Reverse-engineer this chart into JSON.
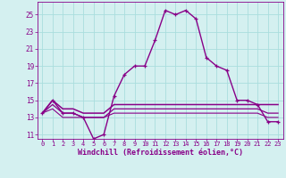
{
  "xlabel": "Windchill (Refroidissement éolien,°C)",
  "bg_color": "#d4f0f0",
  "line_color": "#880088",
  "grid_color": "#aadddd",
  "ylim": [
    10.5,
    26.5
  ],
  "xlim": [
    -0.5,
    23.5
  ],
  "yticks": [
    11,
    13,
    15,
    17,
    19,
    21,
    23,
    25
  ],
  "xticks": [
    0,
    1,
    2,
    3,
    4,
    5,
    6,
    7,
    8,
    9,
    10,
    11,
    12,
    13,
    14,
    15,
    16,
    17,
    18,
    19,
    20,
    21,
    22,
    23
  ],
  "hours": [
    0,
    1,
    2,
    3,
    4,
    5,
    6,
    7,
    8,
    9,
    10,
    11,
    12,
    13,
    14,
    15,
    16,
    17,
    18,
    19,
    20,
    21,
    22,
    23
  ],
  "windchill": [
    13.5,
    15.0,
    13.5,
    13.5,
    13.0,
    10.5,
    11.0,
    15.5,
    18.0,
    19.0,
    19.0,
    22.0,
    25.5,
    25.0,
    25.5,
    24.5,
    20.0,
    19.0,
    18.5,
    15.0,
    15.0,
    14.5,
    12.5,
    12.5
  ],
  "temp": [
    13.5,
    15.0,
    14.0,
    14.0,
    13.5,
    13.5,
    13.5,
    14.5,
    14.5,
    14.5,
    14.5,
    14.5,
    14.5,
    14.5,
    14.5,
    14.5,
    14.5,
    14.5,
    14.5,
    14.5,
    14.5,
    14.5,
    14.5,
    14.5
  ],
  "fl1": [
    13.5,
    14.5,
    13.5,
    13.5,
    13.0,
    13.0,
    13.0,
    14.0,
    14.0,
    14.0,
    14.0,
    14.0,
    14.0,
    14.0,
    14.0,
    14.0,
    14.0,
    14.0,
    14.0,
    14.0,
    14.0,
    14.0,
    13.5,
    13.5
  ],
  "fl2": [
    13.5,
    14.0,
    13.0,
    13.0,
    13.0,
    13.0,
    13.0,
    13.5,
    13.5,
    13.5,
    13.5,
    13.5,
    13.5,
    13.5,
    13.5,
    13.5,
    13.5,
    13.5,
    13.5,
    13.5,
    13.5,
    13.5,
    13.0,
    13.0
  ]
}
